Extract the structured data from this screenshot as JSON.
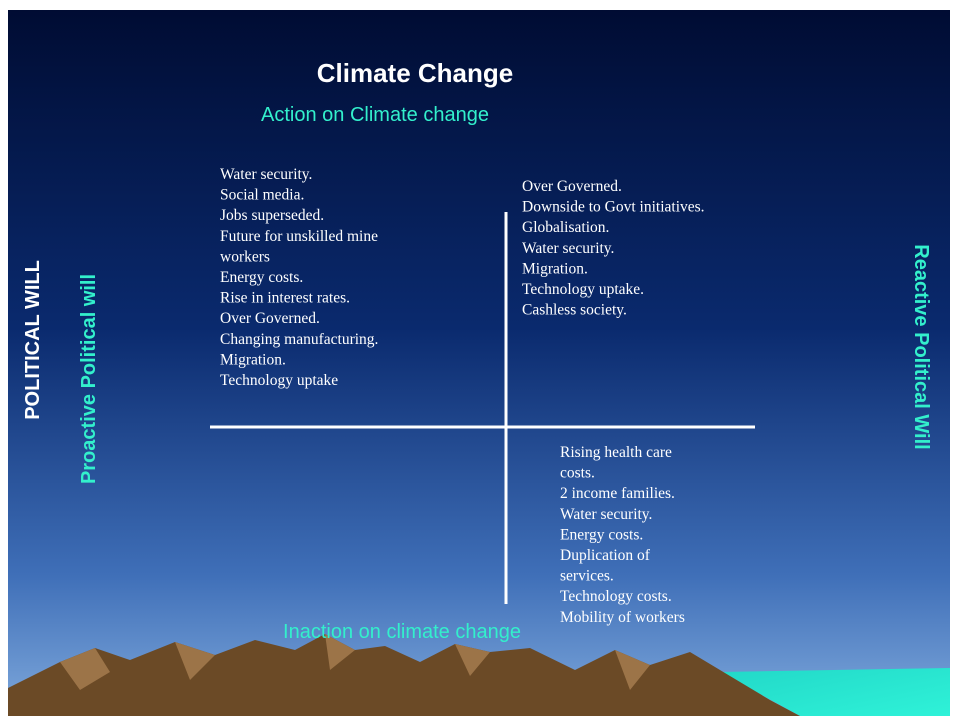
{
  "title": "Climate Change",
  "top_label": "Action on Climate change",
  "bottom_label": "Inaction on climate change",
  "left_outer_label": "POLITICAL WILL",
  "left_inner_label": "Proactive Political will",
  "right_label": "Reactive Political Will",
  "quadrants": {
    "top_left": [
      "Water security.",
      "Social media.",
      "Jobs superseded.",
      "Future for unskilled mine",
      "workers",
      "Energy costs.",
      "Rise in interest rates.",
      "Over Governed.",
      "Changing manufacturing.",
      "Migration.",
      "Technology uptake"
    ],
    "top_right": [
      "Over Governed.",
      "Downside to Govt initiatives.",
      "Globalisation.",
      "Water security.",
      "Migration.",
      "Technology uptake.",
      "Cashless society."
    ],
    "bottom_right": [
      "Rising health care",
      "costs.",
      "2 income families.",
      "Water security.",
      "Energy costs.",
      "Duplication of",
      "services.",
      "Technology costs.",
      "Mobility of workers"
    ]
  }
}
